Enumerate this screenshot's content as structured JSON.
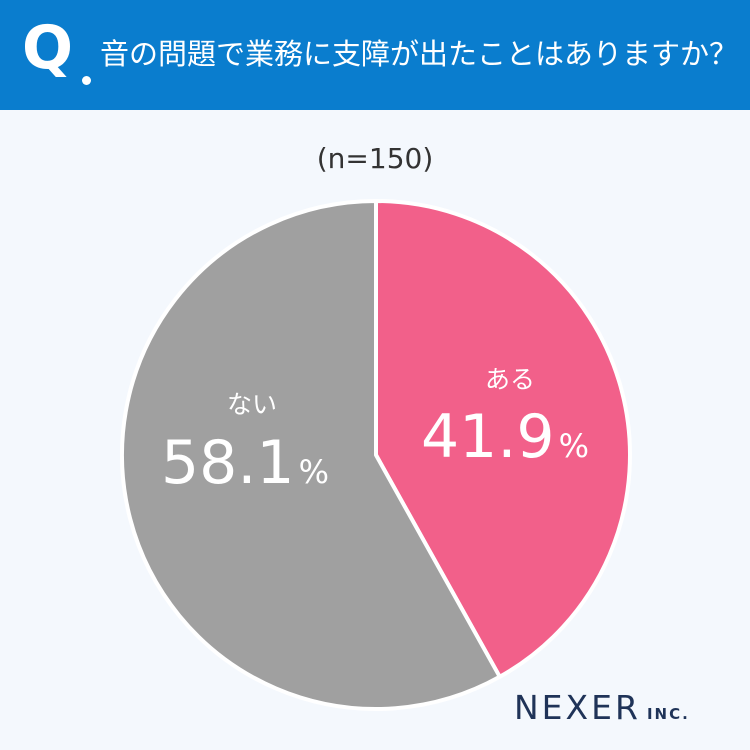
{
  "header": {
    "q_mark": "Q",
    "question": "音の問題で業務に支障が出たことはありますか？"
  },
  "sample_size": "(n=150)",
  "chart_data": {
    "type": "pie",
    "slices": [
      {
        "label": "ある",
        "value": 41.9,
        "display": "41.9",
        "unit": "%",
        "color": "#f2608a"
      },
      {
        "label": "ない",
        "value": 58.1,
        "display": "58.1",
        "unit": "%",
        "color": "#a0a0a0"
      }
    ]
  },
  "logo": {
    "main": "NEXER",
    "sub": "INC."
  }
}
